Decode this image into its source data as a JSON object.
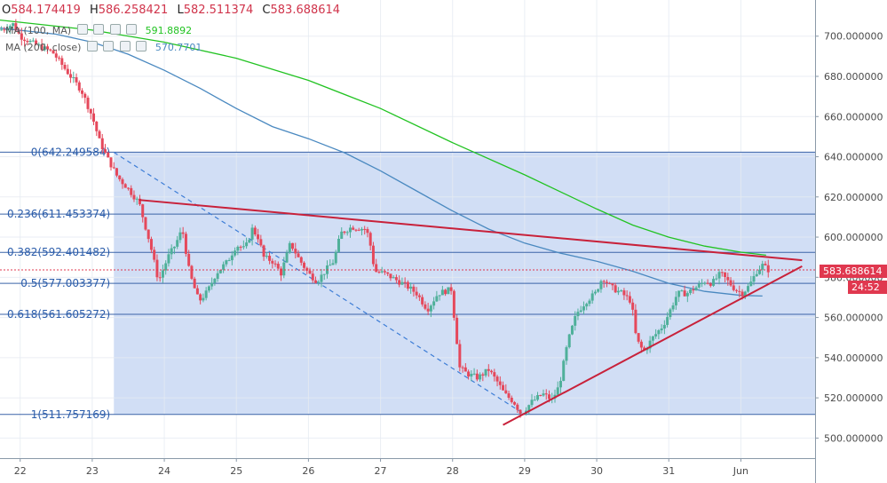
{
  "legend": {
    "ohlc": [
      {
        "key": "O",
        "value": "584.174419"
      },
      {
        "key": "H",
        "value": "586.258421"
      },
      {
        "key": "L",
        "value": "582.511374"
      },
      {
        "key": "C",
        "value": "583.688614"
      }
    ],
    "ma100": {
      "label": "MA (100, MA)",
      "value": "591.8892",
      "color": "#22c322"
    },
    "ma200": {
      "label": "MA (200, close)",
      "value": "570.7701",
      "color": "#4a89c0"
    }
  },
  "price_tag": {
    "value": "583.688614",
    "countdown": "24:52",
    "color": "#e0384f"
  },
  "colors": {
    "up": "#4fb09a",
    "down": "#e5485b",
    "fib_zone": "#cfdcf4",
    "fib_line": "#3a63a8",
    "trend": "#c8213a"
  },
  "chart_data": {
    "type": "candlestick",
    "ylim": [
      490,
      718
    ],
    "y_ticks": [
      {
        "value": 500,
        "label": "500.000000"
      },
      {
        "value": 520,
        "label": "520.000000"
      },
      {
        "value": 540,
        "label": "540.000000"
      },
      {
        "value": 560,
        "label": "560.000000"
      },
      {
        "value": 580,
        "label": "580.000000"
      },
      {
        "value": 600,
        "label": "600.000000"
      },
      {
        "value": 620,
        "label": "620.000000"
      },
      {
        "value": 640,
        "label": "640.000000"
      },
      {
        "value": 660,
        "label": "660.000000"
      },
      {
        "value": 680,
        "label": "680.000000"
      },
      {
        "value": 700,
        "label": "700.000000"
      }
    ],
    "x_ticks": [
      {
        "day": 22,
        "label": "22"
      },
      {
        "day": 23,
        "label": "23"
      },
      {
        "day": 24,
        "label": "24"
      },
      {
        "day": 25,
        "label": "25"
      },
      {
        "day": 26,
        "label": "26"
      },
      {
        "day": 27,
        "label": "27"
      },
      {
        "day": 28,
        "label": "28"
      },
      {
        "day": 29,
        "label": "29"
      },
      {
        "day": 30,
        "label": "30"
      },
      {
        "day": 31,
        "label": "31"
      },
      {
        "day": 32,
        "label": "Jun"
      }
    ],
    "xlim": [
      21.72,
      33.03
    ],
    "fibonacci": {
      "start_day": 23.3,
      "levels": [
        {
          "ratio": "0",
          "price": 642.249584,
          "label": "0(642.249584)"
        },
        {
          "ratio": "0.236",
          "price": 611.453374,
          "label": "0.236(611.453374)"
        },
        {
          "ratio": "0.382",
          "price": 592.401482,
          "label": "0.382(592.401482)"
        },
        {
          "ratio": "0.5",
          "price": 577.003377,
          "label": "0.5(577.003377)"
        },
        {
          "ratio": "0.618",
          "price": 561.605272,
          "label": "0.618(561.605272)"
        },
        {
          "ratio": "1",
          "price": 511.757169,
          "label": "1(511.757169)"
        }
      ],
      "diagonal": {
        "from": [
          23.3,
          642.2
        ],
        "to": [
          29.0,
          511.8
        ]
      }
    },
    "trendlines": [
      {
        "name": "resistance",
        "from": [
          23.65,
          618.5
        ],
        "to": [
          32.85,
          588.5
        ]
      },
      {
        "name": "support",
        "from": [
          28.7,
          506.5
        ],
        "to": [
          32.85,
          585.5
        ]
      }
    ],
    "ma100": [
      [
        21.72,
        708
      ],
      [
        23.0,
        703
      ],
      [
        24.0,
        697
      ],
      [
        25.0,
        689
      ],
      [
        26.0,
        678
      ],
      [
        27.0,
        664
      ],
      [
        28.0,
        647
      ],
      [
        29.0,
        631
      ],
      [
        30.0,
        614
      ],
      [
        30.5,
        606
      ],
      [
        31.0,
        600
      ],
      [
        31.5,
        595.5
      ],
      [
        32.0,
        592.5
      ],
      [
        32.35,
        591
      ]
    ],
    "ma200": [
      [
        21.72,
        704
      ],
      [
        22.5,
        701
      ],
      [
        23.0,
        697
      ],
      [
        23.5,
        691
      ],
      [
        24.0,
        683
      ],
      [
        24.5,
        674
      ],
      [
        25.0,
        664
      ],
      [
        25.5,
        655
      ],
      [
        26.0,
        649
      ],
      [
        26.5,
        642
      ],
      [
        27.0,
        633
      ],
      [
        27.5,
        623
      ],
      [
        28.0,
        613
      ],
      [
        28.5,
        604
      ],
      [
        29.0,
        597
      ],
      [
        29.5,
        592
      ],
      [
        30.0,
        588
      ],
      [
        30.5,
        583
      ],
      [
        31.0,
        577
      ],
      [
        31.5,
        573
      ],
      [
        32.0,
        571
      ],
      [
        32.3,
        570.7
      ]
    ],
    "current_price": 583.688614,
    "anchors": [
      [
        21.72,
        703
      ],
      [
        21.9,
        706
      ],
      [
        22.0,
        700
      ],
      [
        22.2,
        696
      ],
      [
        22.45,
        692
      ],
      [
        22.7,
        680
      ],
      [
        22.85,
        673
      ],
      [
        23.0,
        660
      ],
      [
        23.1,
        648
      ],
      [
        23.2,
        640
      ],
      [
        23.35,
        630
      ],
      [
        23.5,
        624
      ],
      [
        23.65,
        617
      ],
      [
        23.8,
        597
      ],
      [
        23.92,
        578
      ],
      [
        24.05,
        590
      ],
      [
        24.15,
        596
      ],
      [
        24.25,
        604
      ],
      [
        24.35,
        582
      ],
      [
        24.48,
        568
      ],
      [
        24.6,
        573
      ],
      [
        24.72,
        582
      ],
      [
        24.88,
        588
      ],
      [
        25.0,
        596
      ],
      [
        25.12,
        594
      ],
      [
        25.22,
        604
      ],
      [
        25.3,
        600
      ],
      [
        25.38,
        590
      ],
      [
        25.5,
        588
      ],
      [
        25.62,
        582
      ],
      [
        25.75,
        597
      ],
      [
        25.87,
        589
      ],
      [
        26.0,
        582
      ],
      [
        26.12,
        578
      ],
      [
        26.25,
        584
      ],
      [
        26.35,
        588
      ],
      [
        26.45,
        602
      ],
      [
        26.6,
        605
      ],
      [
        26.8,
        604
      ],
      [
        26.85,
        598
      ],
      [
        26.92,
        583
      ],
      [
        27.05,
        582
      ],
      [
        27.2,
        579
      ],
      [
        27.35,
        576
      ],
      [
        27.5,
        572
      ],
      [
        27.65,
        564
      ],
      [
        27.8,
        572
      ],
      [
        27.98,
        574
      ],
      [
        28.1,
        535
      ],
      [
        28.2,
        532
      ],
      [
        28.35,
        530
      ],
      [
        28.5,
        534
      ],
      [
        28.62,
        528
      ],
      [
        28.72,
        522
      ],
      [
        28.85,
        518
      ],
      [
        28.95,
        512
      ],
      [
        29.1,
        518
      ],
      [
        29.25,
        522
      ],
      [
        29.38,
        519
      ],
      [
        29.48,
        526
      ],
      [
        29.6,
        548
      ],
      [
        29.72,
        562
      ],
      [
        29.85,
        568
      ],
      [
        29.98,
        572
      ],
      [
        30.08,
        580
      ],
      [
        30.2,
        575
      ],
      [
        30.35,
        572
      ],
      [
        30.48,
        568
      ],
      [
        30.55,
        549
      ],
      [
        30.65,
        543
      ],
      [
        30.78,
        550
      ],
      [
        30.92,
        556
      ],
      [
        31.0,
        562
      ],
      [
        31.12,
        572
      ],
      [
        31.25,
        572
      ],
      [
        31.38,
        575
      ],
      [
        31.5,
        578
      ],
      [
        31.6,
        577
      ],
      [
        31.72,
        582
      ],
      [
        31.82,
        578
      ],
      [
        31.92,
        574
      ],
      [
        32.02,
        572
      ],
      [
        32.12,
        576
      ],
      [
        32.22,
        583
      ],
      [
        32.3,
        586
      ],
      [
        32.38,
        583.7
      ]
    ]
  }
}
